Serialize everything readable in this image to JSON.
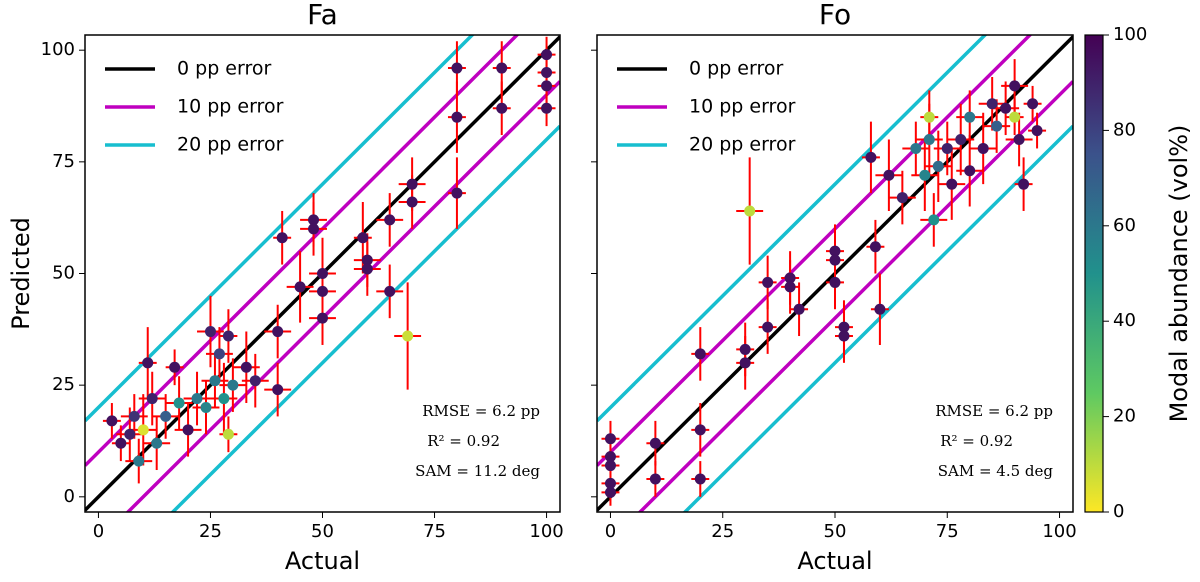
{
  "chart_data": [
    {
      "type": "scatter",
      "title": "Fa",
      "xlabel": "Actual",
      "ylabel": "Predicted",
      "xlim": [
        -3,
        103
      ],
      "ylim": [
        -3.4,
        103.4
      ],
      "xticks": [
        0,
        25,
        50,
        75,
        100
      ],
      "yticks": [
        0,
        25,
        50,
        75,
        100
      ],
      "show_ytick_labels": true,
      "legend": "upper left",
      "error_color": "#ff0000",
      "reference_lines": [
        {
          "name": "0 pp error",
          "color": "#000000",
          "offset": 0
        },
        {
          "name": "10 pp error",
          "color": "#bf00bf",
          "offset": 10
        },
        {
          "name": "20 pp error",
          "color": "#17becf",
          "offset": 20
        }
      ],
      "annotations": [
        "RMSE = 6.2 pp",
        "R² = 0.92",
        "SAM = 11.2 deg"
      ],
      "x": [
        3,
        5,
        7,
        8,
        9,
        10,
        11,
        12,
        13,
        15,
        17,
        18,
        20,
        22,
        24,
        25,
        26,
        27,
        28,
        29,
        29,
        30,
        33,
        35,
        40,
        41,
        40,
        45,
        48,
        48,
        50,
        50,
        50,
        59,
        60,
        60,
        65,
        65,
        69,
        70,
        70,
        80,
        80,
        80,
        90,
        90,
        100,
        100,
        100,
        100
      ],
      "y": [
        17,
        12,
        14,
        18,
        8,
        15,
        30,
        22,
        12,
        18,
        29,
        21,
        15,
        22,
        20,
        37,
        26,
        32,
        22,
        14,
        36,
        25,
        29,
        26,
        37,
        58,
        24,
        47,
        62,
        60,
        46,
        50,
        40,
        58,
        53,
        51,
        62,
        46,
        36,
        70,
        66,
        96,
        85,
        68,
        96,
        87,
        99,
        95,
        92,
        87
      ],
      "xerr": [
        2,
        2,
        3,
        3,
        3,
        3,
        2,
        3,
        3,
        3,
        2,
        3,
        3,
        3,
        3,
        3,
        3,
        3,
        3,
        2,
        2,
        3,
        3,
        3,
        3,
        2,
        3,
        3,
        3,
        3,
        3,
        3,
        3,
        2,
        3,
        3,
        3,
        3,
        3,
        3,
        3,
        2,
        2,
        2,
        2,
        2,
        2,
        2,
        2,
        2
      ],
      "yerr": [
        4,
        4,
        6,
        5,
        5,
        8,
        8,
        6,
        6,
        5,
        4,
        6,
        6,
        6,
        6,
        8,
        6,
        6,
        8,
        4,
        6,
        6,
        8,
        6,
        6,
        6,
        6,
        8,
        6,
        6,
        6,
        8,
        6,
        8,
        6,
        6,
        6,
        6,
        12,
        6,
        6,
        6,
        8,
        8,
        6,
        6,
        4,
        4,
        4,
        4
      ],
      "c": [
        95,
        95,
        90,
        85,
        60,
        5,
        95,
        90,
        60,
        70,
        95,
        50,
        95,
        60,
        55,
        90,
        60,
        80,
        50,
        10,
        90,
        60,
        95,
        90,
        95,
        95,
        95,
        95,
        95,
        95,
        95,
        95,
        95,
        95,
        95,
        95,
        95,
        95,
        8,
        95,
        95,
        95,
        95,
        95,
        95,
        95,
        95,
        95,
        95,
        95
      ]
    },
    {
      "type": "scatter",
      "title": "Fo",
      "xlabel": "Actual",
      "xlim": [
        -3,
        103
      ],
      "ylim": [
        -3.4,
        103.4
      ],
      "xticks": [
        0,
        25,
        50,
        75,
        100
      ],
      "yticks": [
        0,
        25,
        50,
        75,
        100
      ],
      "show_ytick_labels": false,
      "legend": "upper left",
      "error_color": "#ff0000",
      "reference_lines": [
        {
          "name": "0 pp error",
          "color": "#000000",
          "offset": 0
        },
        {
          "name": "10 pp error",
          "color": "#bf00bf",
          "offset": 10
        },
        {
          "name": "20 pp error",
          "color": "#17becf",
          "offset": 20
        }
      ],
      "annotations": [
        "RMSE = 6.2 pp",
        "R² = 0.92",
        "SAM = 4.5 deg"
      ],
      "x": [
        0,
        0,
        0,
        0,
        0,
        10,
        10,
        20,
        20,
        20,
        30,
        30,
        31,
        35,
        35,
        40,
        40,
        42,
        50,
        50,
        50,
        52,
        52,
        58,
        59,
        60,
        62,
        65,
        68,
        70,
        71,
        71,
        72,
        73,
        75,
        76,
        78,
        80,
        80,
        83,
        85,
        86,
        88,
        90,
        90,
        91,
        94,
        95,
        92
      ],
      "y": [
        13,
        9,
        7,
        3,
        1,
        12,
        4,
        32,
        15,
        4,
        33,
        30,
        64,
        48,
        38,
        49,
        47,
        42,
        55,
        53,
        48,
        38,
        36,
        76,
        56,
        42,
        72,
        67,
        78,
        72,
        85,
        80,
        62,
        74,
        78,
        70,
        80,
        73,
        85,
        78,
        88,
        83,
        87,
        85,
        92,
        80,
        88,
        82,
        70
      ],
      "xerr": [
        2,
        2,
        2,
        2,
        2,
        2,
        2,
        2,
        2,
        2,
        2,
        2,
        3,
        2,
        2,
        2,
        2,
        2,
        2,
        2,
        2,
        2,
        2,
        2,
        2,
        2,
        3,
        3,
        3,
        3,
        2,
        3,
        3,
        3,
        3,
        3,
        3,
        3,
        3,
        3,
        3,
        3,
        3,
        2,
        3,
        3,
        2,
        2,
        2
      ],
      "yerr": [
        4,
        3,
        3,
        3,
        3,
        5,
        4,
        6,
        6,
        4,
        6,
        6,
        12,
        6,
        6,
        6,
        6,
        6,
        6,
        6,
        6,
        6,
        6,
        8,
        6,
        8,
        8,
        6,
        6,
        8,
        6,
        8,
        6,
        8,
        6,
        8,
        8,
        8,
        6,
        8,
        6,
        6,
        6,
        4,
        6,
        6,
        4,
        4,
        6
      ],
      "c": [
        95,
        95,
        95,
        95,
        95,
        95,
        95,
        95,
        95,
        95,
        95,
        95,
        10,
        95,
        95,
        95,
        95,
        95,
        95,
        95,
        95,
        95,
        95,
        95,
        95,
        95,
        95,
        90,
        60,
        55,
        10,
        60,
        50,
        65,
        90,
        95,
        90,
        95,
        60,
        95,
        90,
        70,
        95,
        10,
        95,
        95,
        95,
        95,
        95
      ]
    },
    {
      "type": "colorbar",
      "label": "Modal abundance (vol%)",
      "colormap": "viridis",
      "clim": [
        0,
        100
      ],
      "cticks": [
        0,
        20,
        40,
        60,
        80,
        100
      ]
    }
  ]
}
